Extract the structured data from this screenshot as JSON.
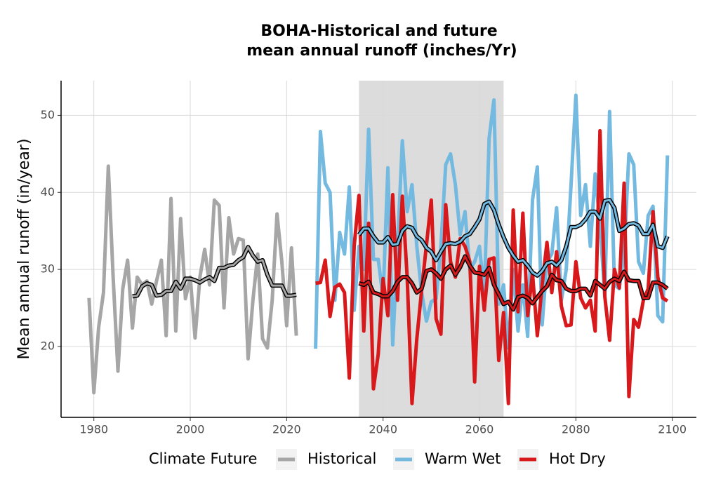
{
  "chart_data": {
    "type": "line",
    "title": [
      "BOHA-Historical and future",
      "mean annual runoff (inches/Yr)"
    ],
    "y_label": "Mean annual runoff (in/year)",
    "legend_title": "Climate Future",
    "legend_position": "bottom",
    "grid": true,
    "xlim": [
      1973.2,
      2105
    ],
    "ylim": [
      10.8,
      54.5
    ],
    "xticks": [
      1980,
      2000,
      2020,
      2040,
      2060,
      2080,
      2100
    ],
    "yticks": [
      20,
      30,
      40,
      50
    ],
    "highlight": [
      2035,
      2065
    ],
    "highlight_color": "#dcdcdc",
    "series": [
      {
        "name": "Historical",
        "color": "#a6a6a6",
        "x": [
          1979,
          1980,
          1981,
          1982,
          1983,
          1984,
          1985,
          1986,
          1987,
          1988,
          1989,
          1990,
          1991,
          1992,
          1993,
          1994,
          1995,
          1996,
          1997,
          1998,
          1999,
          2000,
          2001,
          2002,
          2003,
          2004,
          2005,
          2006,
          2007,
          2008,
          2009,
          2010,
          2011,
          2012,
          2013,
          2014,
          2015,
          2016,
          2017,
          2018,
          2019,
          2020,
          2021,
          2022
        ],
        "values": [
          26.3,
          14,
          22.5,
          27,
          43.4,
          29,
          16.8,
          27.5,
          31.2,
          22.4,
          29,
          28,
          28.5,
          25.5,
          28.5,
          31.2,
          21.4,
          39.2,
          22,
          36.6,
          26.2,
          29,
          21.1,
          29,
          32.6,
          28,
          39,
          38.3,
          25,
          36.7,
          32,
          34,
          33.8,
          18.4,
          26,
          32,
          21,
          19.8,
          26,
          37.2,
          31,
          22.7,
          32.8,
          21.4
        ],
        "rolling_x": [
          1988,
          1989,
          1990,
          1991,
          1992,
          1993,
          1994,
          1995,
          1996,
          1997,
          1998,
          1999,
          2000,
          2001,
          2002,
          2003,
          2004,
          2005,
          2006,
          2007,
          2008,
          2009,
          2010,
          2011,
          2012,
          2013,
          2014,
          2015,
          2016,
          2017,
          2018,
          2019,
          2020,
          2021,
          2022
        ],
        "rolling": [
          26.5,
          26.6,
          27.8,
          28.2,
          28.0,
          26.6,
          26.7,
          27.2,
          27.2,
          28.4,
          27.5,
          28.8,
          28.8,
          28.6,
          28.3,
          28.7,
          29.0,
          28.5,
          30.2,
          30.2,
          30.5,
          30.6,
          31.2,
          31.6,
          32.9,
          31.8,
          31.0,
          31.2,
          29.3,
          27.9,
          27.9,
          27.9,
          26.6,
          26.6,
          26.7
        ]
      },
      {
        "name": "Warm Wet",
        "color": "#74b9e0",
        "x": [
          2026,
          2027,
          2028,
          2029,
          2030,
          2031,
          2032,
          2033,
          2034,
          2035,
          2036,
          2037,
          2038,
          2039,
          2040,
          2041,
          2042,
          2043,
          2044,
          2045,
          2046,
          2047,
          2048,
          2049,
          2050,
          2051,
          2052,
          2053,
          2054,
          2055,
          2056,
          2057,
          2058,
          2059,
          2060,
          2061,
          2062,
          2063,
          2064,
          2065,
          2066,
          2067,
          2068,
          2069,
          2070,
          2071,
          2072,
          2073,
          2074,
          2075,
          2076,
          2077,
          2078,
          2079,
          2080,
          2081,
          2082,
          2083,
          2084,
          2085,
          2086,
          2087,
          2088,
          2089,
          2090,
          2091,
          2092,
          2093,
          2094,
          2095,
          2096,
          2097,
          2098,
          2099
        ],
        "values": [
          19.7,
          47.9,
          41.2,
          40,
          26,
          34.8,
          32,
          40.7,
          24.7,
          33,
          30,
          48.2,
          31.3,
          31.3,
          26.3,
          43.2,
          20.2,
          33,
          46.7,
          37.5,
          41,
          33,
          27,
          23.3,
          25.8,
          26.2,
          33,
          43.6,
          45,
          41,
          34.5,
          37.5,
          30,
          31,
          33,
          26.7,
          47,
          52,
          25.5,
          28,
          19.8,
          30,
          22,
          28,
          21.3,
          39,
          43.3,
          22.8,
          31,
          32,
          38,
          26,
          30,
          41,
          52.6,
          37,
          41,
          33,
          42.4,
          36,
          26.5,
          50.5,
          28,
          27.5,
          32,
          45,
          43.6,
          31,
          29.5,
          37,
          38.2,
          24,
          23.2,
          44.8
        ],
        "rolling_x": [
          2035,
          2036,
          2037,
          2038,
          2039,
          2040,
          2041,
          2042,
          2043,
          2044,
          2045,
          2046,
          2047,
          2048,
          2049,
          2050,
          2051,
          2052,
          2053,
          2054,
          2055,
          2056,
          2057,
          2058,
          2059,
          2060,
          2061,
          2062,
          2063,
          2064,
          2065,
          2066,
          2067,
          2068,
          2069,
          2070,
          2071,
          2072,
          2073,
          2074,
          2075,
          2076,
          2077,
          2078,
          2079,
          2080,
          2081,
          2082,
          2083,
          2084,
          2085,
          2086,
          2087,
          2088,
          2089,
          2090,
          2091,
          2092,
          2093,
          2094,
          2095,
          2096,
          2097,
          2098,
          2099
        ],
        "rolling": [
          34.5,
          35.3,
          35.3,
          34.3,
          33.5,
          33.5,
          34.2,
          33.2,
          33.3,
          35,
          35.6,
          35.4,
          34.3,
          33.8,
          32.8,
          32.3,
          31.2,
          32.3,
          33.3,
          33.4,
          33.3,
          33.6,
          34.3,
          34.6,
          35.5,
          36.5,
          38.5,
          38.8,
          37.7,
          35.8,
          34.2,
          32.8,
          31.8,
          31.0,
          31.2,
          30.5,
          29.6,
          29.2,
          29.8,
          30.8,
          31.0,
          30.5,
          31.2,
          33.0,
          35.5,
          35.5,
          35.8,
          36.5,
          37.5,
          37.5,
          36.6,
          38.9,
          39.0,
          38.0,
          35.0,
          35.3,
          35.9,
          36.0,
          35.7,
          34.6,
          34.6,
          35.8,
          33.0,
          32.8,
          34.3
        ]
      },
      {
        "name": "Hot Dry",
        "color": "#d7191c",
        "x": [
          2026,
          2027,
          2028,
          2029,
          2030,
          2031,
          2032,
          2033,
          2034,
          2035,
          2036,
          2037,
          2038,
          2039,
          2040,
          2041,
          2042,
          2043,
          2044,
          2045,
          2046,
          2047,
          2048,
          2049,
          2050,
          2051,
          2052,
          2053,
          2054,
          2055,
          2056,
          2057,
          2058,
          2059,
          2060,
          2061,
          2062,
          2063,
          2064,
          2065,
          2066,
          2067,
          2068,
          2069,
          2070,
          2071,
          2072,
          2073,
          2074,
          2075,
          2076,
          2077,
          2078,
          2079,
          2080,
          2081,
          2082,
          2083,
          2084,
          2085,
          2086,
          2087,
          2088,
          2089,
          2090,
          2091,
          2092,
          2093,
          2094,
          2095,
          2096,
          2097,
          2098,
          2099
        ],
        "values": [
          28.2,
          28.3,
          31.2,
          23.9,
          27.7,
          28.1,
          27,
          15.9,
          33,
          39.6,
          22,
          36,
          14.5,
          19,
          28.8,
          24,
          39.7,
          26,
          39.5,
          29,
          12.6,
          21,
          27.3,
          33.2,
          39,
          23.6,
          21.6,
          38.4,
          31,
          29,
          34,
          33,
          31,
          15.4,
          30.4,
          24.7,
          31.3,
          31.5,
          18.2,
          24.4,
          12.6,
          37.7,
          24.5,
          37.3,
          24,
          29.5,
          21.4,
          28,
          33.5,
          27,
          32.3,
          25.2,
          22.7,
          22.8,
          31,
          26.3,
          25,
          26,
          22,
          48,
          26.5,
          20.8,
          30,
          27.6,
          41.2,
          13.5,
          23.5,
          22.5,
          26,
          27.5,
          37.5,
          29,
          26.3,
          25.9
        ],
        "rolling_x": [
          2035,
          2036,
          2037,
          2038,
          2039,
          2040,
          2041,
          2042,
          2043,
          2044,
          2045,
          2046,
          2047,
          2048,
          2049,
          2050,
          2051,
          2052,
          2053,
          2054,
          2055,
          2056,
          2057,
          2058,
          2059,
          2060,
          2061,
          2062,
          2063,
          2064,
          2065,
          2066,
          2067,
          2068,
          2069,
          2070,
          2071,
          2072,
          2073,
          2074,
          2075,
          2076,
          2077,
          2078,
          2079,
          2080,
          2081,
          2082,
          2083,
          2084,
          2085,
          2086,
          2087,
          2088,
          2089,
          2090,
          2091,
          2092,
          2093,
          2094,
          2095,
          2096,
          2097,
          2098,
          2099
        ],
        "rolling": [
          28.2,
          28,
          28.4,
          27,
          26.8,
          26.5,
          26.5,
          27.2,
          28.4,
          29,
          29,
          28.2,
          27,
          27.5,
          29.8,
          30,
          29.5,
          28.8,
          30,
          30.5,
          29.3,
          30.3,
          31.7,
          30.5,
          29.6,
          29.5,
          29.3,
          30.2,
          28,
          26.8,
          25.5,
          25.8,
          24.8,
          26.4,
          26.6,
          26.3,
          25.6,
          26.4,
          27.2,
          27.8,
          29.3,
          28.6,
          28.5,
          27.5,
          27.2,
          27.2,
          27.5,
          27.5,
          26.6,
          28.5,
          28,
          27.5,
          28.4,
          28.8,
          28.5,
          29.7,
          28.6,
          28.5,
          28.5,
          26.3,
          26.3,
          28.3,
          28.3,
          28.0,
          27.5
        ]
      }
    ]
  }
}
